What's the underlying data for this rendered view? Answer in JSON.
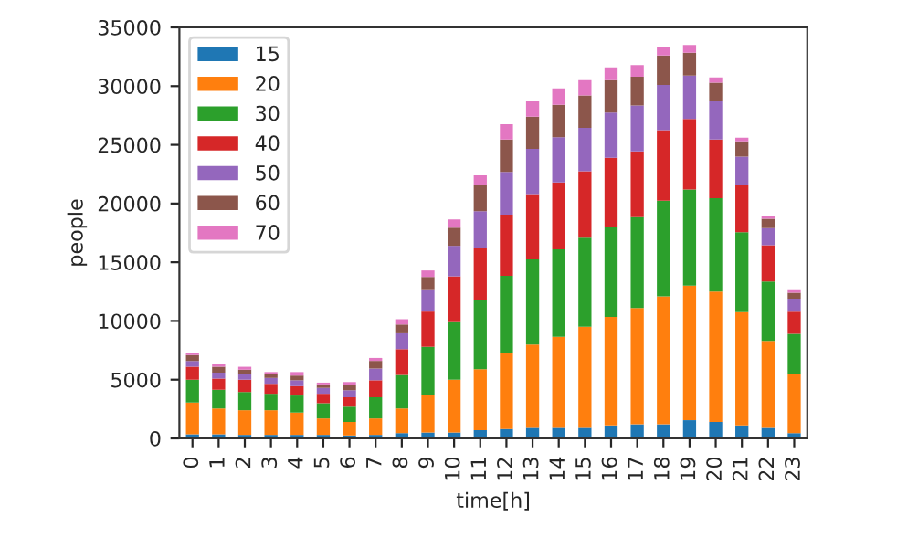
{
  "chart_data": {
    "type": "bar",
    "stacked": true,
    "xlabel": "time[h]",
    "ylabel": "people",
    "categories": [
      "0",
      "1",
      "2",
      "3",
      "4",
      "5",
      "6",
      "7",
      "8",
      "9",
      "10",
      "11",
      "12",
      "13",
      "14",
      "15",
      "16",
      "17",
      "18",
      "19",
      "20",
      "21",
      "22",
      "23"
    ],
    "series": [
      {
        "name": "15",
        "color": "#1f77b4",
        "values": [
          350,
          350,
          300,
          300,
          300,
          300,
          250,
          300,
          450,
          500,
          500,
          700,
          800,
          900,
          900,
          900,
          1100,
          1200,
          1200,
          1550,
          1400,
          1100,
          900,
          450
        ]
      },
      {
        "name": "20",
        "color": "#ff7f0e",
        "values": [
          2700,
          2200,
          2100,
          2100,
          1900,
          1400,
          1150,
          1400,
          2100,
          3200,
          4500,
          5200,
          6450,
          7100,
          7750,
          8600,
          9250,
          9900,
          10900,
          11450,
          11100,
          9650,
          7400,
          5000
        ]
      },
      {
        "name": "30",
        "color": "#2ca02c",
        "values": [
          1950,
          1600,
          1550,
          1400,
          1450,
          1300,
          1300,
          1800,
          2850,
          4100,
          4900,
          5850,
          6600,
          7250,
          7450,
          7600,
          7700,
          7750,
          8150,
          8200,
          7950,
          6800,
          5050,
          3450
        ]
      },
      {
        "name": "40",
        "color": "#d62728",
        "values": [
          1100,
          950,
          1050,
          850,
          800,
          800,
          800,
          1450,
          2200,
          3000,
          3900,
          4500,
          5200,
          5550,
          5700,
          5650,
          5850,
          5600,
          6000,
          6000,
          5000,
          4000,
          3100,
          1900
        ]
      },
      {
        "name": "50",
        "color": "#9467bd",
        "values": [
          500,
          500,
          450,
          500,
          500,
          500,
          600,
          1000,
          1350,
          1900,
          2600,
          3100,
          3650,
          3850,
          3850,
          3700,
          3850,
          3900,
          3850,
          3700,
          3250,
          2450,
          1450,
          1100
        ]
      },
      {
        "name": "60",
        "color": "#8c564b",
        "values": [
          500,
          500,
          400,
          350,
          400,
          300,
          450,
          650,
          750,
          1050,
          1550,
          2200,
          2750,
          2750,
          2750,
          2750,
          2750,
          2450,
          2500,
          1950,
          1600,
          1300,
          800,
          500
        ]
      },
      {
        "name": "70",
        "color": "#e377c2",
        "values": [
          200,
          250,
          250,
          150,
          300,
          150,
          250,
          250,
          450,
          550,
          700,
          850,
          1300,
          1300,
          1400,
          1300,
          1100,
          1000,
          750,
          650,
          450,
          300,
          250,
          300
        ]
      }
    ],
    "ylim": [
      0,
      35000
    ],
    "yticks": [
      0,
      5000,
      10000,
      15000,
      20000,
      25000,
      30000,
      35000
    ],
    "legend": "top left",
    "grid": false
  }
}
